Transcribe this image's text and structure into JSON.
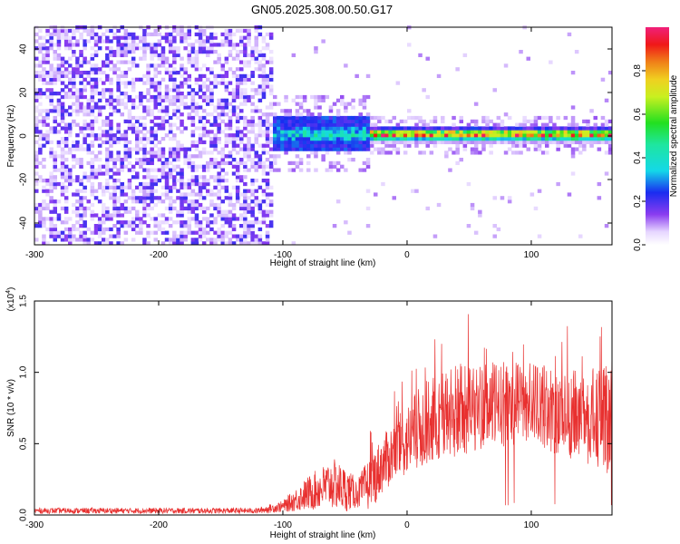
{
  "title": "GN05.2025.308.00.50.G17",
  "colors": {
    "snr_line": "#e8302f",
    "spectrum_low": "#ffffff",
    "spectrum_purple": "#6b1fe0",
    "spectrum_blue": "#1a2cf0",
    "spectrum_cyan": "#14d8e8",
    "spectrum_green": "#22e020",
    "spectrum_yellow": "#f0f020",
    "spectrum_red": "#f01818"
  },
  "chart_data": [
    {
      "type": "heatmap",
      "name": "spectrogram",
      "xlabel": "Height of straight line (km)",
      "ylabel": "Frequency (Hz)",
      "xlim": [
        -300,
        165
      ],
      "ylim": [
        -50,
        50
      ],
      "xticks": [
        -300,
        -200,
        -100,
        0,
        100
      ],
      "yticks": [
        -40,
        -20,
        0,
        20,
        40
      ],
      "colorbar": {
        "label": "Normalized spectral amplitude",
        "range": [
          0,
          1
        ],
        "ticks": [
          "0.0",
          "0.2",
          "0.4",
          "0.6",
          "0.8"
        ]
      },
      "regions": [
        {
          "x_range": [
            -300,
            -110
          ],
          "description": "noise",
          "level": 0.25
        },
        {
          "x_range": [
            -110,
            -30
          ],
          "center_freq_hz": 0,
          "spread_hz": 8,
          "level": 0.45
        },
        {
          "x_range": [
            -30,
            165
          ],
          "center_freq_hz": 0,
          "spread_hz": 4,
          "level": 0.95
        }
      ]
    },
    {
      "type": "line",
      "name": "snr",
      "xlabel": "Height of straight line (km)",
      "ylabel": "SNR (10 * v/v)",
      "yscale_label": "(x10",
      "yscale_exp": "4",
      "xlim": [
        -300,
        165
      ],
      "ylim": [
        0,
        1.5
      ],
      "xticks": [
        -300,
        -200,
        -100,
        0,
        100
      ],
      "yticks": [
        "0.0",
        "0.5",
        "1.0",
        "1.5"
      ],
      "envelope": [
        {
          "x": -300,
          "mean": 0.03,
          "amp": 0.02
        },
        {
          "x": -120,
          "mean": 0.03,
          "amp": 0.02
        },
        {
          "x": -100,
          "mean": 0.06,
          "amp": 0.04
        },
        {
          "x": -80,
          "mean": 0.15,
          "amp": 0.12
        },
        {
          "x": -60,
          "mean": 0.22,
          "amp": 0.18
        },
        {
          "x": -50,
          "mean": 0.18,
          "amp": 0.16
        },
        {
          "x": -40,
          "mean": 0.15,
          "amp": 0.1
        },
        {
          "x": -30,
          "mean": 0.22,
          "amp": 0.2
        },
        {
          "x": -20,
          "mean": 0.35,
          "amp": 0.2
        },
        {
          "x": -10,
          "mean": 0.45,
          "amp": 0.22
        },
        {
          "x": 0,
          "mean": 0.52,
          "amp": 0.25
        },
        {
          "x": 10,
          "mean": 0.6,
          "amp": 0.3
        },
        {
          "x": 20,
          "mean": 0.68,
          "amp": 0.3
        },
        {
          "x": 40,
          "mean": 0.72,
          "amp": 0.35
        },
        {
          "x": 60,
          "mean": 0.76,
          "amp": 0.3
        },
        {
          "x": 80,
          "mean": 0.78,
          "amp": 0.3
        },
        {
          "x": 100,
          "mean": 0.8,
          "amp": 0.28
        },
        {
          "x": 120,
          "mean": 0.72,
          "amp": 0.3
        },
        {
          "x": 140,
          "mean": 0.7,
          "amp": 0.32
        },
        {
          "x": 165,
          "mean": 0.65,
          "amp": 0.4
        }
      ]
    }
  ]
}
